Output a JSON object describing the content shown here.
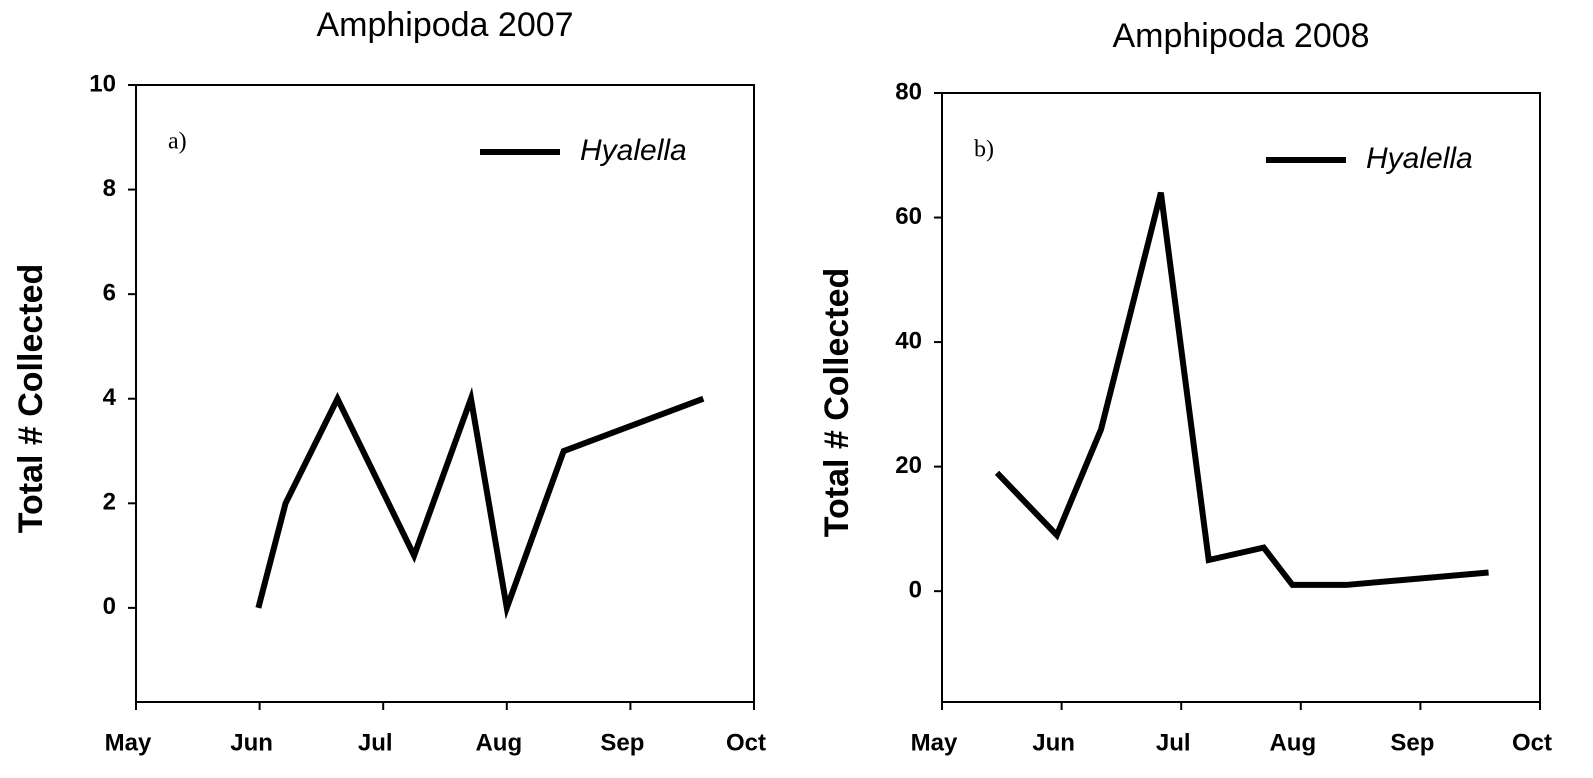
{
  "chart_data": [
    {
      "type": "line",
      "title": "Amphipoda 2007",
      "annotation": "a)",
      "y_label": "Total # Collected",
      "x": [
        0.99,
        1.21,
        1.63,
        2.25,
        2.71,
        3.0,
        3.46,
        4.59
      ],
      "series": [
        {
          "name": "Hyalella",
          "color": "#000000",
          "values": [
            0,
            2,
            4,
            1,
            4,
            0,
            3,
            4
          ]
        }
      ],
      "xlim": [
        0,
        5
      ],
      "xticks": [
        {
          "value": 0,
          "label": "May"
        },
        {
          "value": 1,
          "label": "Jun"
        },
        {
          "value": 2,
          "label": "Jul"
        },
        {
          "value": 3,
          "label": "Aug"
        },
        {
          "value": 4,
          "label": "Sep"
        },
        {
          "value": 5,
          "label": "Oct"
        }
      ],
      "ylim": [
        -1.8,
        10
      ],
      "yticks": [
        0,
        2,
        4,
        6,
        8,
        10
      ],
      "legend": "upper right"
    },
    {
      "type": "line",
      "title": "Amphipoda 2008",
      "annotation": "b)",
      "y_label": "Total # Collected",
      "x": [
        0.46,
        0.96,
        1.33,
        1.83,
        2.23,
        2.69,
        2.93,
        3.38,
        4.57
      ],
      "series": [
        {
          "name": "Hyalella",
          "color": "#000000",
          "values": [
            19,
            9,
            26,
            64,
            5,
            7,
            1,
            1,
            3
          ]
        }
      ],
      "xlim": [
        0,
        5
      ],
      "xticks": [
        {
          "value": 0,
          "label": "May"
        },
        {
          "value": 1,
          "label": "Jun"
        },
        {
          "value": 2,
          "label": "Jul"
        },
        {
          "value": 3,
          "label": "Aug"
        },
        {
          "value": 4,
          "label": "Sep"
        },
        {
          "value": 5,
          "label": "Oct"
        }
      ],
      "ylim": [
        -17.8,
        80
      ],
      "yticks": [
        0,
        20,
        40,
        60,
        80
      ],
      "legend": "upper right"
    }
  ]
}
